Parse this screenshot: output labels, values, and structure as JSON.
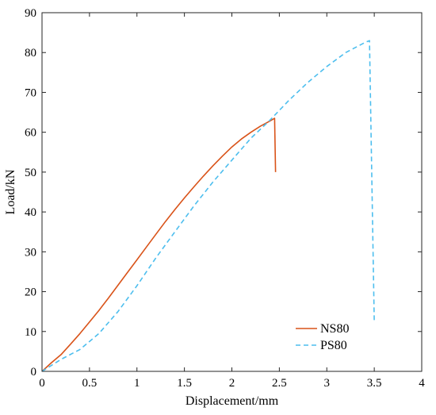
{
  "chart_data": {
    "type": "line",
    "title": "",
    "xlabel": "Displacement/mm",
    "ylabel": "Load/kN",
    "xlim": [
      0,
      4
    ],
    "ylim": [
      0,
      90
    ],
    "xticks": [
      0,
      0.5,
      1,
      1.5,
      2,
      2.5,
      3,
      3.5,
      4
    ],
    "yticks": [
      0,
      10,
      20,
      30,
      40,
      50,
      60,
      70,
      80,
      90
    ],
    "xtick_labels": [
      "0",
      "0.5",
      "1",
      "1.5",
      "2",
      "2.5",
      "3",
      "3.5",
      "4"
    ],
    "ytick_labels": [
      "0",
      "10",
      "20",
      "30",
      "40",
      "50",
      "60",
      "70",
      "80",
      "90"
    ],
    "grid": false,
    "legend_position": "bottom-right",
    "series": [
      {
        "name": "NS80",
        "color": "#d95319",
        "style": "solid",
        "x": [
          0,
          0.1,
          0.2,
          0.3,
          0.4,
          0.5,
          0.6,
          0.7,
          0.8,
          0.9,
          1.0,
          1.1,
          1.2,
          1.3,
          1.4,
          1.5,
          1.6,
          1.7,
          1.8,
          1.9,
          2.0,
          2.1,
          2.2,
          2.3,
          2.4,
          2.45,
          2.46
        ],
        "y": [
          0,
          2.2,
          4.2,
          6.8,
          9.5,
          12.4,
          15.3,
          18.4,
          21.6,
          24.8,
          28.0,
          31.2,
          34.4,
          37.6,
          40.6,
          43.5,
          46.3,
          49.0,
          51.6,
          54.0,
          56.3,
          58.3,
          60.0,
          61.5,
          62.8,
          63.5,
          50.0
        ]
      },
      {
        "name": "PS80",
        "color": "#4dbeee",
        "style": "dashed",
        "x": [
          0,
          0.2,
          0.4,
          0.6,
          0.8,
          1.0,
          1.2,
          1.4,
          1.6,
          1.8,
          2.0,
          2.2,
          2.4,
          2.6,
          2.8,
          3.0,
          3.2,
          3.4,
          3.45,
          3.5
        ],
        "y": [
          0,
          3.0,
          5.5,
          9.5,
          15.0,
          21.5,
          28.5,
          35.0,
          41.5,
          47.5,
          53.0,
          58.5,
          63.0,
          68.0,
          72.5,
          76.5,
          80.0,
          82.5,
          83.0,
          12.5
        ]
      }
    ]
  }
}
